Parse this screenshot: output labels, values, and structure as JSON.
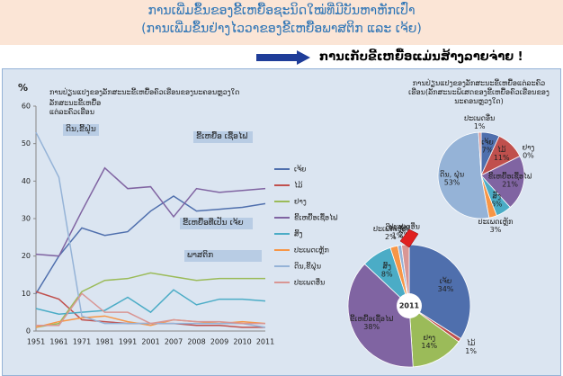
{
  "header": {
    "title_line1": "ການເພີ່ມຂຶ້ນຂອງຂີ້ເຫຍື້ອຊະນິດໃໝ່ທີ່ມີບັນຫາຫັກເປົ່າ",
    "title_line2": "(ການເພີ່ມຂຶ້ນຢ່າງໄວວາຂອງຂີ້ເຫຍື້ອພາສຕິກ ແລະ ເຈ້ຍ)",
    "message": "ການເກັບຂີ້ເຫຍື້ອແມ່ນສ້າງລາຍຈ່າຍ !"
  },
  "chart_data": [
    {
      "type": "line",
      "title": "ການປ່ຽນແປງຂອງລັກສະນະຂີ້ເຫຍື້ອຄົວເຮືອນຂອງນະຄອນຫຼວງໃດ",
      "subtitle": "ລັກສະນະຂີ້ເຫຍື້ອ ແຕ່ລະຄົວເຮືອນ",
      "y_label": "%",
      "categories": [
        "1951",
        "1961",
        "1971",
        "1981",
        "1991",
        "2001",
        "2007",
        "2008",
        "2009",
        "2010",
        "2011"
      ],
      "ylim": [
        0,
        60
      ],
      "yticks": [
        0,
        10,
        20,
        30,
        40,
        50,
        60
      ],
      "series": [
        {
          "name": "ເຈ້ຍ",
          "color": "#4f6fad",
          "values": [
            10,
            20,
            27.5,
            25.5,
            26.5,
            32,
            36,
            32,
            32.5,
            33,
            34
          ]
        },
        {
          "name": "ໄມ້",
          "color": "#c0504d",
          "values": [
            10.5,
            8.5,
            3,
            2.5,
            2,
            2,
            2,
            1.5,
            1.5,
            1,
            1
          ]
        },
        {
          "name": "ຢາງ",
          "color": "#9bbb59",
          "values": [
            1,
            2,
            10.5,
            13.5,
            14,
            15.5,
            14.5,
            13.5,
            14,
            14,
            14
          ]
        },
        {
          "name": "ຂີ້ເຫຍື້ອເຊື້ອໄຟ",
          "color": "#8064a2",
          "values": [
            20.5,
            20,
            32,
            43.5,
            38,
            38.5,
            30.5,
            38,
            37,
            37.5,
            38
          ]
        },
        {
          "name": "ສິ້ງ",
          "color": "#4bacc6",
          "values": [
            6,
            4.5,
            5,
            5.5,
            9,
            5,
            11,
            7,
            8.5,
            8.5,
            8
          ]
        },
        {
          "name": "ປະເພດເຫຼັກ",
          "color": "#f79646",
          "values": [
            1,
            2.5,
            3.5,
            4,
            2.5,
            1.5,
            3,
            2.5,
            2,
            2.5,
            2
          ]
        },
        {
          "name": "ດິນ,ຂີ້ຝຸ່ນ",
          "color": "#95b3d7",
          "values": [
            53,
            41,
            4,
            2,
            2,
            2,
            2,
            2,
            2,
            2,
            1
          ]
        },
        {
          "name": "ປະເພດອື່ນ",
          "color": "#d99694",
          "values": [
            1.5,
            1.5,
            10,
            5,
            5,
            2,
            3,
            2.5,
            2.5,
            2,
            2
          ]
        }
      ],
      "annotations": [
        "ດິນ,ຂີ້ຝຸ່ນ",
        "ຂີ້ເຫຍື້ອ ເຊື້ອໄຟ",
        "ຂີ້ເຫຍື້ອທີ່ເປັນ ເຈ້ຍ",
        "ພາສຕິກ"
      ]
    },
    {
      "type": "pie",
      "title": "ການປ່ຽນແປງຂອງລັກສະນະຂີ້ເຫຍື້ອແຕ່ລະຄົວເຮືອນ(ລັກສະນະພິເສດຂອງຂີ້ເຫຍື້ອຄົວເຮືອນຂອງນະຄອນຫຼວງໃດ)",
      "categories": [
        "ເຈ້ຍ",
        "ໄມ້",
        "ຢາງ",
        "ຂີ້ເຫຍື້ອເຊື້ອໄຟ",
        "ສິ້ງ",
        "ປະເພດເຫຼັກ",
        "ດິນ, ຝຸ່ນ",
        "ປະເພດອື່ນ"
      ],
      "values": [
        7,
        11,
        0,
        21,
        6,
        3,
        53,
        1
      ],
      "value_labels": [
        "7%",
        "11%",
        "0%",
        "21%",
        "6%",
        "3%",
        "53%",
        "1%"
      ],
      "colors": [
        "#4f6fad",
        "#c0504d",
        "#9bbb59",
        "#8064a2",
        "#4bacc6",
        "#f79646",
        "#95b3d7",
        "#d99694"
      ]
    },
    {
      "type": "pie",
      "title": "2011",
      "categories": [
        "ເຈ້ຍ",
        "ໄມ້",
        "ຢາງ",
        "ຂີ້ເຫຍື້ອເຊື້ອໄຟ",
        "ສິ້ງ",
        "ປະເພດເຫຼັກ",
        "ດິນ, ຝຸ່ນ",
        "ປະເພດອື່ນ"
      ],
      "values": [
        34,
        1,
        14,
        38,
        8,
        2,
        1,
        2
      ],
      "value_labels": [
        "34%",
        "1%",
        "14%",
        "38%",
        "8%",
        "2%",
        "1%",
        "2%"
      ],
      "colors": [
        "#4f6fad",
        "#c0504d",
        "#9bbb59",
        "#8064a2",
        "#4bacc6",
        "#f79646",
        "#95b3d7",
        "#d99694"
      ]
    }
  ]
}
